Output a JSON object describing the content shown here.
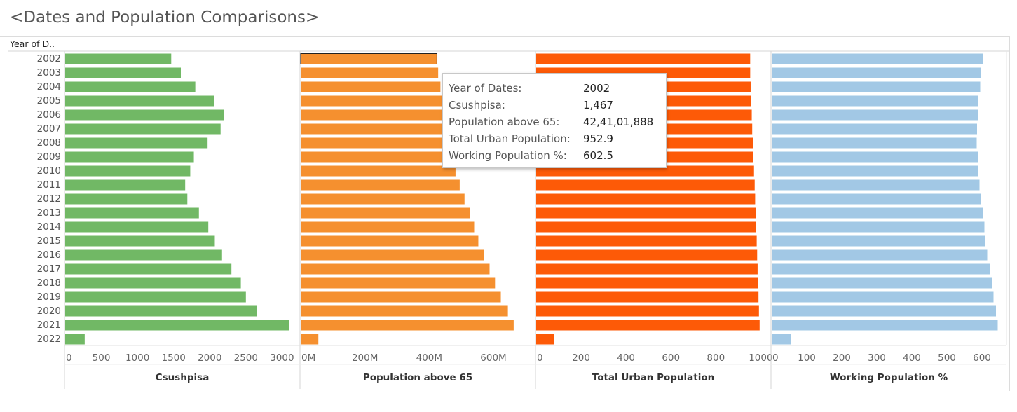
{
  "title": "<Dates and Population Comparisons>",
  "row_header": "Year of D..",
  "chart_data": {
    "type": "bar",
    "orientation": "horizontal",
    "categories": [
      "2002",
      "2003",
      "2004",
      "2005",
      "2006",
      "2007",
      "2008",
      "2009",
      "2010",
      "2011",
      "2012",
      "2013",
      "2014",
      "2015",
      "2016",
      "2017",
      "2018",
      "2019",
      "2020",
      "2021",
      "2022"
    ],
    "panels": [
      {
        "measure": "Csushpisa",
        "xlabel": "Csushpisa",
        "color": "#71b865",
        "xlim": [
          0,
          3200
        ],
        "ticks": [
          0,
          500,
          1000,
          1500,
          2000,
          2500,
          3000
        ],
        "tick_labels": [
          "0",
          "500",
          "1000",
          "1500",
          "2000",
          "2500",
          "3000"
        ],
        "values": [
          1467,
          1600,
          1800,
          2060,
          2200,
          2150,
          1970,
          1780,
          1730,
          1660,
          1690,
          1850,
          1980,
          2070,
          2170,
          2300,
          2430,
          2500,
          2650,
          3100,
          270
        ]
      },
      {
        "measure": "Population above 65",
        "xlabel": "Population above 65",
        "color": "#f5902f",
        "xlim": [
          0,
          720000000
        ],
        "ticks": [
          0,
          200000000,
          400000000,
          600000000
        ],
        "tick_labels": [
          "0M",
          "200M",
          "400M",
          "600M"
        ],
        "values": [
          424101888,
          428000000,
          435000000,
          440000000,
          446000000,
          452000000,
          458000000,
          465000000,
          482000000,
          495000000,
          510000000,
          527000000,
          540000000,
          553000000,
          570000000,
          588000000,
          605000000,
          623000000,
          645000000,
          663000000,
          55000000
        ]
      },
      {
        "measure": "Total Urban Population",
        "xlabel": "Total Urban Population",
        "color": "#fd5a07",
        "xlim": [
          0,
          1030
        ],
        "ticks": [
          0,
          200,
          400,
          600,
          800,
          1000
        ],
        "tick_labels": [
          "0",
          "200",
          "400",
          "600",
          "800",
          "1000"
        ],
        "values": [
          952.9,
          953,
          955,
          958,
          960,
          962,
          965,
          967,
          970,
          973,
          975,
          977,
          980,
          982,
          984,
          986,
          988,
          990,
          992,
          995,
          80
        ]
      },
      {
        "measure": "Working Population %",
        "xlabel": "Working Population %",
        "color": "#a2c8e5",
        "xlim": [
          0,
          660
        ],
        "ticks": [
          0,
          100,
          200,
          300,
          400,
          500,
          600
        ],
        "tick_labels": [
          "0",
          "100",
          "200",
          "300",
          "400",
          "500",
          "600"
        ],
        "values": [
          602.5,
          598,
          595,
          590,
          588,
          586,
          585,
          588,
          590,
          593,
          598,
          602,
          607,
          610,
          615,
          622,
          628,
          633,
          640,
          645,
          55
        ]
      }
    ],
    "highlighted_category": "2002",
    "highlighted_panel": "Population above 65"
  },
  "tooltip": {
    "rows": [
      {
        "label": "Year of Dates:",
        "value": "2002"
      },
      {
        "label": "Csushpisa:",
        "value": "1,467"
      },
      {
        "label": "Population above 65:",
        "value": "42,41,01,888"
      },
      {
        "label": "Total Urban Population:",
        "value": "952.9"
      },
      {
        "label": "Working Population %:",
        "value": "602.5"
      }
    ]
  }
}
